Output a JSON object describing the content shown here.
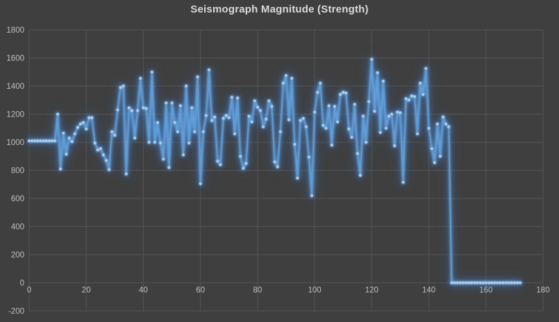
{
  "title": "Seismograph Magnitude (Strength)",
  "colors": {
    "background": "#3F3F3F",
    "gridline": "#545454",
    "tick_label": "#BFBFBF",
    "title_text": "#D9D9D9",
    "line": "#5B9BD5",
    "marker": "#A9CCEA",
    "glow": "#3E96FF"
  },
  "chart_data": {
    "type": "line",
    "title": "Seismograph Magnitude (Strength)",
    "xlabel": "",
    "ylabel": "",
    "x_start": 0,
    "x_step": 1,
    "num_points": 173,
    "xlim": [
      0,
      180
    ],
    "ylim": [
      -200,
      1800
    ],
    "x_ticks": [
      0,
      20,
      40,
      60,
      80,
      100,
      120,
      140,
      160,
      180
    ],
    "y_ticks": [
      -200,
      0,
      200,
      400,
      600,
      800,
      1000,
      1200,
      1400,
      1600,
      1800
    ],
    "grid": true,
    "legend": "none",
    "marker": "circle",
    "values": [
      1010,
      1010,
      1010,
      1010,
      1010,
      1010,
      1010,
      1010,
      1010,
      1010,
      1200,
      810,
      1065,
      915,
      1030,
      1005,
      1060,
      1105,
      1130,
      1140,
      1095,
      1175,
      1175,
      995,
      945,
      955,
      910,
      870,
      805,
      1075,
      1050,
      1230,
      1390,
      1400,
      775,
      1245,
      1225,
      1030,
      1225,
      1455,
      1245,
      1240,
      1000,
      1500,
      1000,
      1140,
      995,
      880,
      1280,
      820,
      1280,
      1140,
      1075,
      1260,
      910,
      1400,
      995,
      1245,
      1075,
      1465,
      705,
      1075,
      1190,
      1515,
      1155,
      1180,
      865,
      840,
      1170,
      1190,
      1175,
      1320,
      1060,
      1315,
      900,
      815,
      850,
      1185,
      1145,
      1295,
      1250,
      1225,
      1110,
      1165,
      1295,
      1255,
      860,
      825,
      1075,
      1420,
      1475,
      1160,
      1455,
      985,
      745,
      1155,
      1170,
      1110,
      895,
      620,
      1215,
      1355,
      1420,
      1120,
      1100,
      1260,
      980,
      1255,
      1145,
      1340,
      1355,
      1350,
      1095,
      1035,
      1270,
      920,
      765,
      1185,
      1000,
      1290,
      1590,
      1220,
      1495,
      1070,
      1435,
      1100,
      1185,
      1200,
      975,
      1215,
      1210,
      715,
      1310,
      1300,
      1330,
      1325,
      1060,
      1420,
      1340,
      1525,
      1100,
      955,
      855,
      1130,
      900,
      1180,
      1130,
      1110,
      0,
      0,
      0,
      0,
      0,
      0,
      0,
      0,
      0,
      0,
      0,
      0,
      0,
      0,
      0,
      0,
      0,
      0,
      0,
      0,
      0,
      0,
      0,
      0,
      0
    ]
  }
}
